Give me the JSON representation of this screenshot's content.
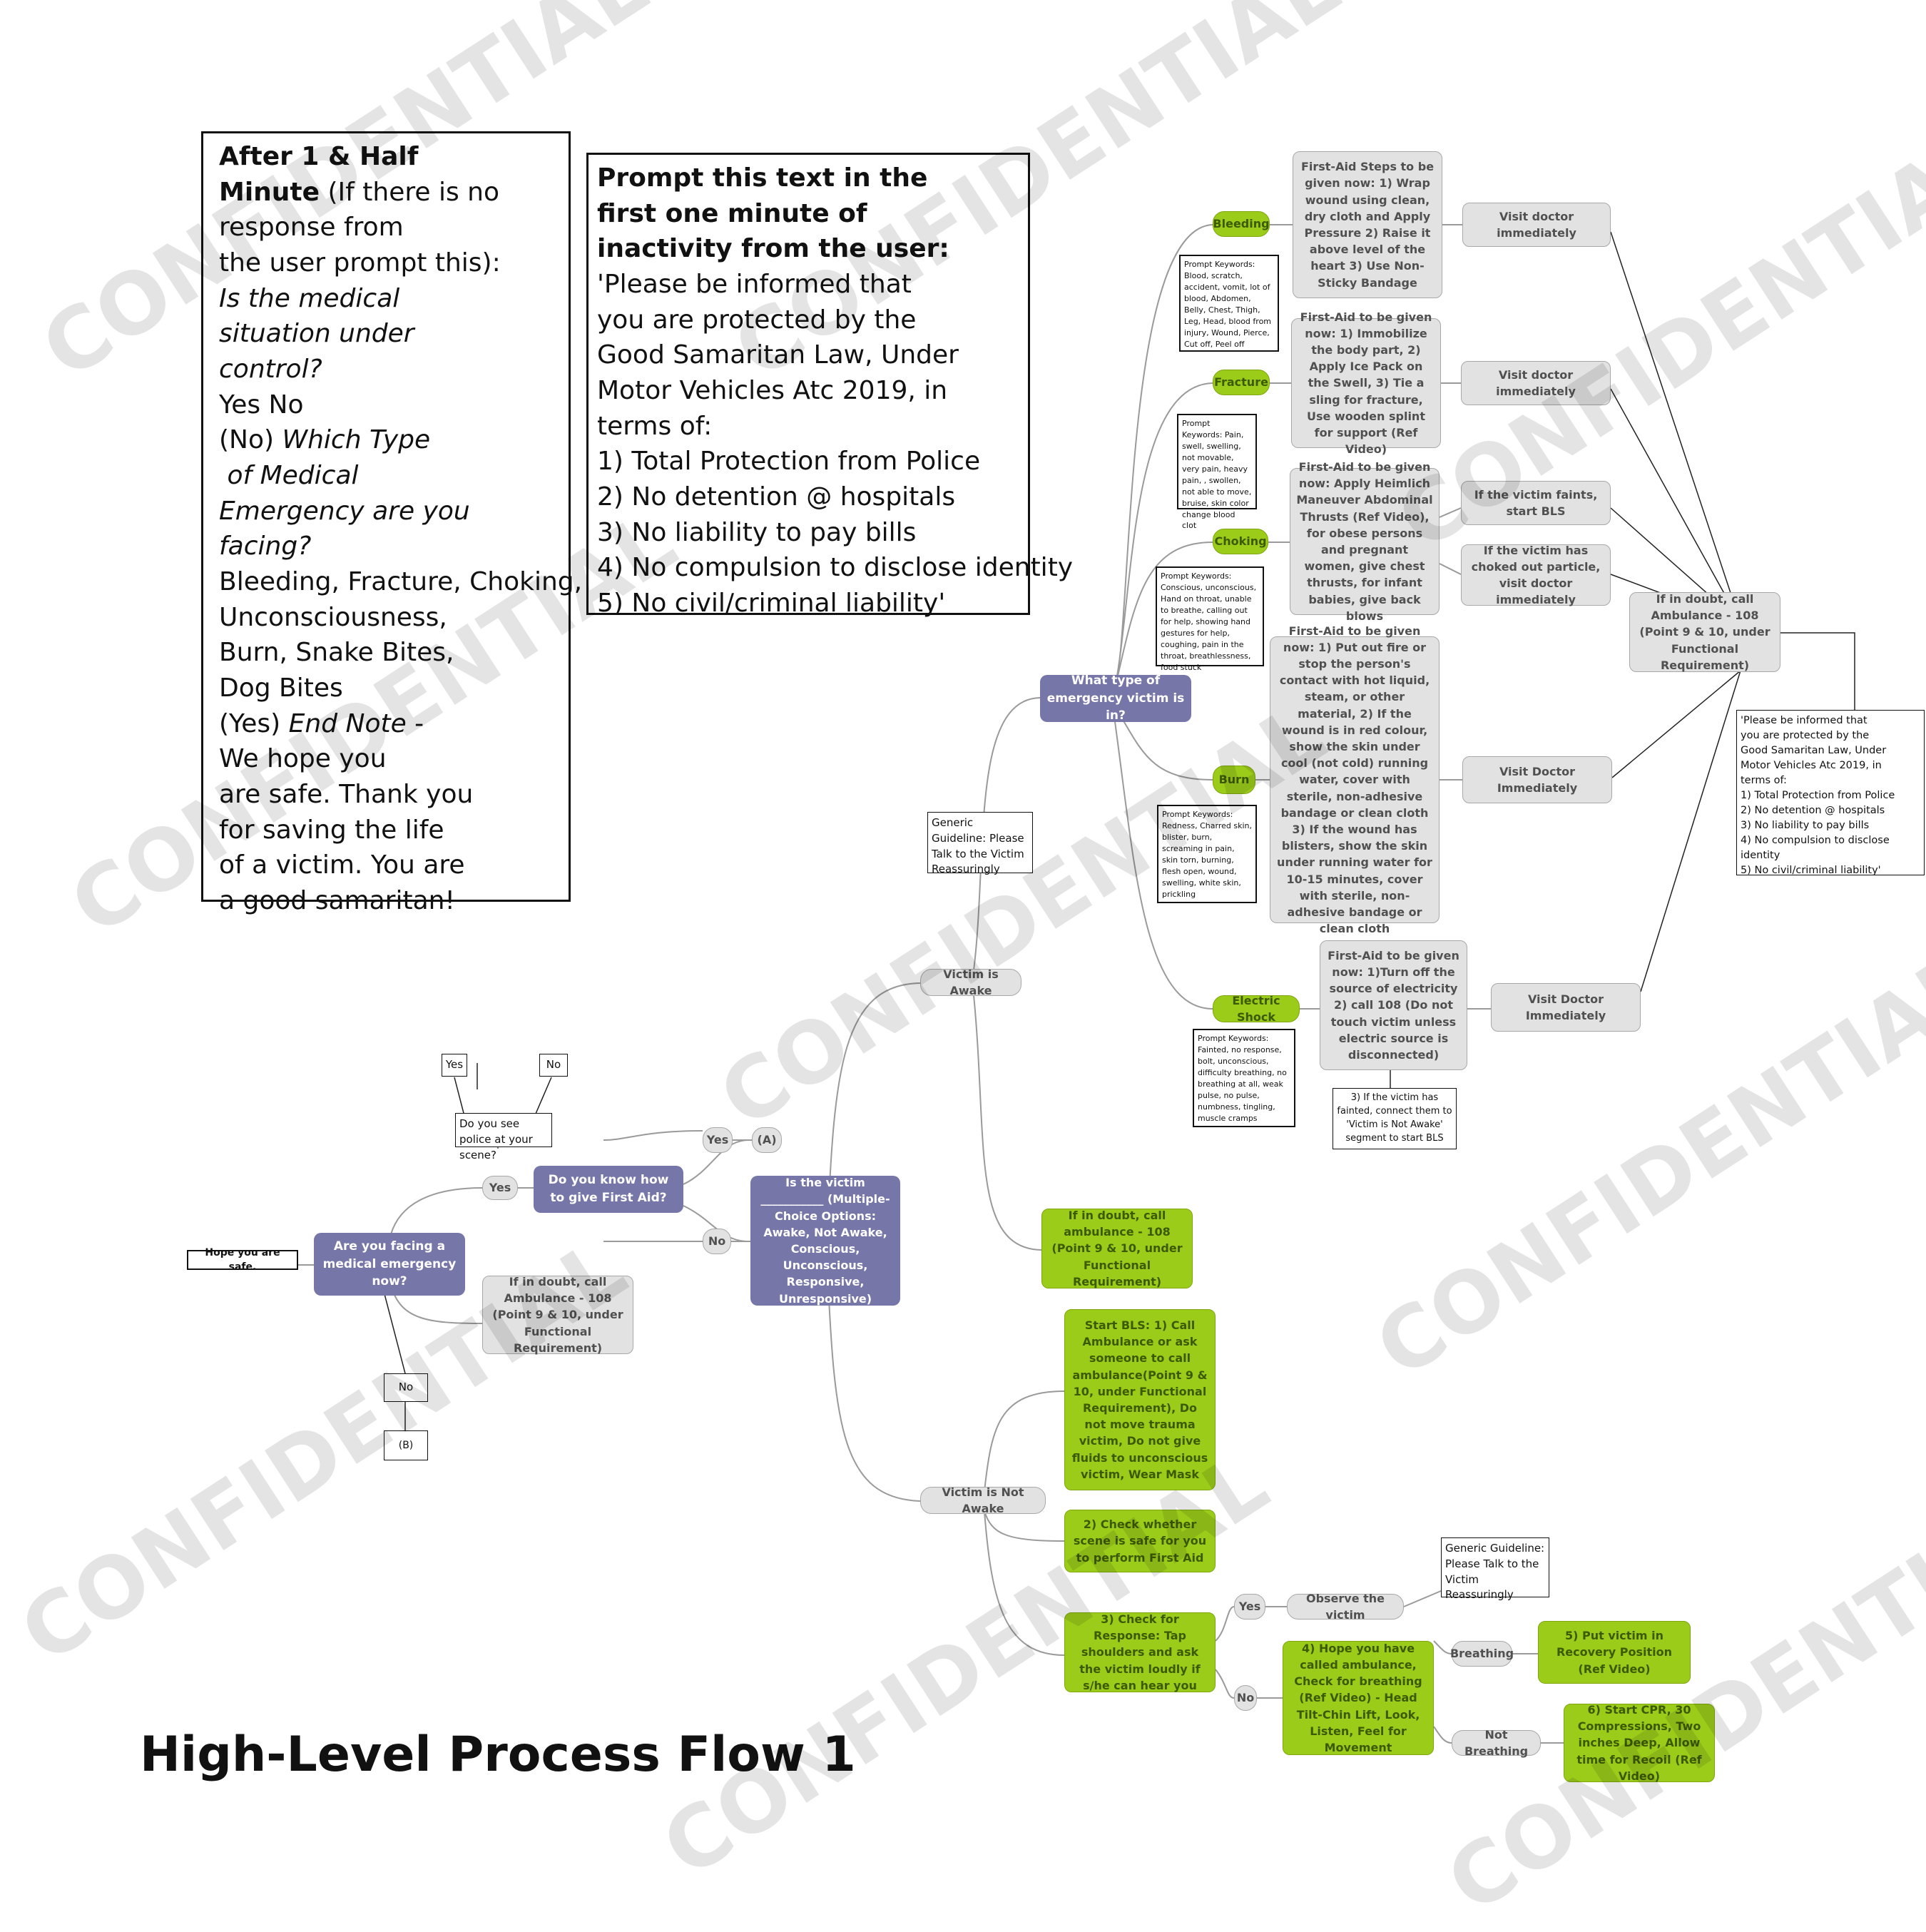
{
  "title": "High-Level Process Flow 1",
  "watermark_text": "CONFIDENTIAL",
  "colors": {
    "purple": "#7776a8",
    "green": "#9ccc1a",
    "grey": "#e2e2e2",
    "line": "#9a9a9a"
  },
  "box_after": {
    "line1": "After 1 & Half",
    "line2_bold": "Minute",
    "line2_rest": " (If there is no",
    "line3": "response from",
    "line4": "the user prompt this):",
    "line5": "Is the medical",
    "line6": "situation under",
    "line7": "control?",
    "line8": "Yes No",
    "line9_pre": "(No) ",
    "line9_it": "Which Type",
    "line10": " of Medical",
    "line11": "Emergency are you",
    "line12": "facing?",
    "line13": "Bleeding, Fracture, Choking,",
    "line14": "Unconsciousness,",
    "line15": "Burn, Snake Bites,",
    "line16": "Dog Bites",
    "line17_pre": "(Yes) ",
    "line17_it": "End Note",
    "line17_post": " -",
    "line18": "We hope you",
    "line19": "are safe. Thank you",
    "line20": "for saving the life",
    "line21": "of a victim. You are",
    "line22": "a good samaritan!"
  },
  "box_prompt": {
    "h1": "Prompt this text in the",
    "h2": "first one minute of",
    "h3": "inactivity from the user:",
    "l1": "'Please be informed that",
    "l2": "you are protected by the",
    "l3": "Good Samaritan Law, Under",
    "l4": "Motor Vehicles Atc 2019, in",
    "l5": "terms of:",
    "l6": "1) Total Protection from Police",
    "l7": "2) No detention @ hospitals",
    "l8": "3) No liability to pay bills",
    "l9": "4) No compulsion to disclose identity",
    "l10": "5) No civil/criminal liability'"
  },
  "nodes": {
    "hope_safe": "Hope you are safe.",
    "facing_emergency": "Are you facing a medical emergency now?",
    "know_first_aid": "Do you know how to give First Aid?",
    "police_question": "Do you see police at your scene?",
    "police_yes": "Yes",
    "police_no": "No",
    "yes1": "Yes",
    "yes2": "Yes",
    "a_label": "(A)",
    "no1": "No",
    "no_box": "No",
    "b_box": "(B)",
    "doubt_left": "If in doubt, call Ambulance - 108 (Point 9 & 10, under Functional Requirement)",
    "is_victim": "Is the victim ___________ (Multiple-Choice Options: Awake, Not Awake, Conscious, Unconscious, Responsive, Unresponsive)",
    "victim_awake": "Victim is Awake",
    "victim_not_awake": "Victim is Not Awake",
    "generic_guideline": "Generic Guideline: Please Talk to the Victim Reassuringly",
    "what_type": "What type of emergency victim is in?",
    "doubt_mid": "If in doubt, call ambulance - 108 (Point 9 & 10, under Functional Requirement)",
    "bleeding": "Bleeding",
    "bleeding_kw": "Prompt Keywords: Blood, scratch, accident, vomit, lot of blood, Abdomen, Belly, Chest, Thigh, Leg, Head, blood from injury, Wound, Pierce, Cut off, Peel off",
    "bleeding_steps": "First-Aid Steps to be given now: 1) Wrap wound using clean, dry cloth and Apply Pressure 2) Raise it above level of the heart 3) Use Non-Sticky Bandage",
    "bleeding_visit": "Visit doctor immediately",
    "fracture": "Fracture",
    "fracture_kw": "Prompt Keywords: Pain, swell, swelling, not movable, very pain, heavy pain, , swollen, not able to move, bruise, skin color change blood clot",
    "fracture_steps": "First-Aid to be given now: 1) Immobilize the body part, 2) Apply Ice Pack on the Swell, 3) Tie a sling for fracture, Use wooden splint for support (Ref Video)",
    "fracture_visit": "Visit doctor immediately",
    "choking": "Choking",
    "choking_kw": "Prompt Keywords: Conscious, unconscious, Hand on throat, unable to breathe, calling out for help, showing hand gestures for help, coughing, pain in the throat, breathlessness, food stuck",
    "choking_steps": "First-Aid to be given now: Apply Heimlich Maneuver Abdominal Thrusts (Ref Video), for obese persons and pregnant women, give chest thrusts, for infant babies, give back blows",
    "choking_faints": "If the victim faints, start BLS",
    "choking_particle": "If the victim has choked out particle, visit doctor immediately",
    "burn": "Burn",
    "burn_kw": "Prompt Keywords: Redness, Charred skin, blister, burn, screaming in pain, skin torn, burning, flesh open, wound, swelling, white skin, prickling",
    "burn_steps": "First-Aid to be given now: 1) Put out fire or stop the person's contact with hot liquid, steam, or other material, 2) If the wound is in red colour, show the skin under cool (not cold) running water, cover with sterile, non-adhesive bandage or clean cloth 3) If the wound has blisters, show the skin under running water for 10-15 minutes, cover with sterile, non-adhesive bandage or clean cloth",
    "burn_visit": "Visit Doctor Immediately",
    "shock": "Electric Shock",
    "shock_kw": "Prompt Keywords: Fainted, no response, bolt, unconscious, difficulty breathing, no breathing at all, weak pulse, no pulse, numbness, tingling, muscle cramps",
    "shock_steps": "First-Aid to be given now: 1)Turn off the source of electricity 2) call 108 (Do not touch victim unless electric source is disconnected)",
    "shock_visit": "Visit Doctor Immediately",
    "shock_fainted": "3) If the victim has fainted, connect them to 'Victim is Not Awake' segment to start BLS",
    "doubt_right": "If in doubt, call Ambulance - 108 (Point 9 & 10, under Functional Requirement)",
    "right_note": "'Please be informed that\nyou are protected by the\nGood Samaritan Law, Under\nMotor Vehicles Atc 2019, in\nterms of:\n1) Total Protection from Police\n2) No detention @ hospitals\n3) No liability to pay bills\n4) No compulsion to disclose identity\n5) No civil/criminal liability'",
    "start_bls": "Start BLS: 1) Call Ambulance or ask someone to call ambulance(Point 9 & 10, under Functional Requirement), Do not move trauma victim, Do not give fluids to unconscious victim, Wear Mask",
    "check_scene": "2) Check whether scene is safe for you to perform First Aid",
    "check_response": "3) Check for Response: Tap shoulders and ask the victim loudly if s/he can hear you",
    "resp_yes": "Yes",
    "resp_no": "No",
    "observe": "Observe the victim",
    "generic_guideline2": "Generic Guideline: Please Talk to the Victim Reassuringly",
    "hope_called": "4) Hope you have called ambulance, Check for breathing (Ref Video) - Head Tilt-Chin Lift, Look, Listen, Feel for Movement",
    "breathing": "Breathing",
    "not_breathing": "Not Breathing",
    "recovery": "5) Put victim in Recovery Position (Ref Video)",
    "cpr": "6) Start CPR, 30 Compressions, Two inches Deep, Allow time for Recoil (Ref Video)"
  }
}
